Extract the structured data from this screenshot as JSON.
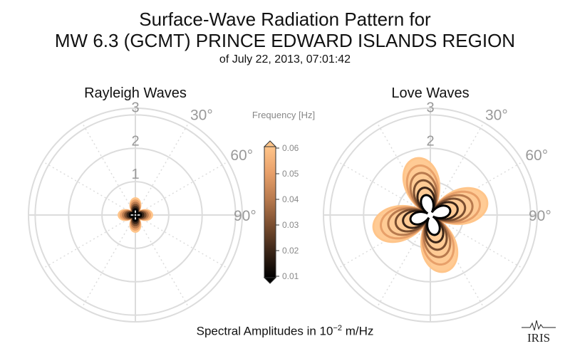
{
  "title_line1": "Surface-Wave Radiation Pattern for",
  "title_line2": "MW 6.3 (GCMT) PRINCE EDWARD ISLANDS REGION",
  "title_line3": "of July 22, 2013, 07:01:42",
  "footer": {
    "prefix": "Spectral Amplitudes in ",
    "base": "10",
    "exponent": "−2",
    "unit": " m/Hz"
  },
  "logo_text": "IRIS",
  "colorbar": {
    "label": "Frequency [Hz]",
    "ticks": [
      "0.06",
      "0.05",
      "0.04",
      "0.03",
      "0.02",
      "0.01"
    ],
    "colors": [
      "#000000",
      "#3a2518",
      "#7a4e30",
      "#b87a4e",
      "#e8a06a",
      "#ffc58a"
    ]
  },
  "chart_data": [
    {
      "type": "polar",
      "title": "Rayleigh Waves",
      "radial_ticks": [
        "1",
        "2",
        "3"
      ],
      "radial_max": 3.2,
      "angle_labels": [
        "30°",
        "60°",
        "90°"
      ],
      "grid": true,
      "pattern": {
        "lobes": 4,
        "orientation_deg": 45,
        "max_amplitude": 0.5
      }
    },
    {
      "type": "polar",
      "title": "Love Waves",
      "radial_ticks": [
        "1",
        "2",
        "3"
      ],
      "radial_max": 3.2,
      "angle_labels": [
        "30°",
        "60°",
        "90°"
      ],
      "grid": true,
      "pattern": {
        "lobes": 4,
        "orientation_deg": 30,
        "max_amplitude": 1.75
      }
    }
  ]
}
